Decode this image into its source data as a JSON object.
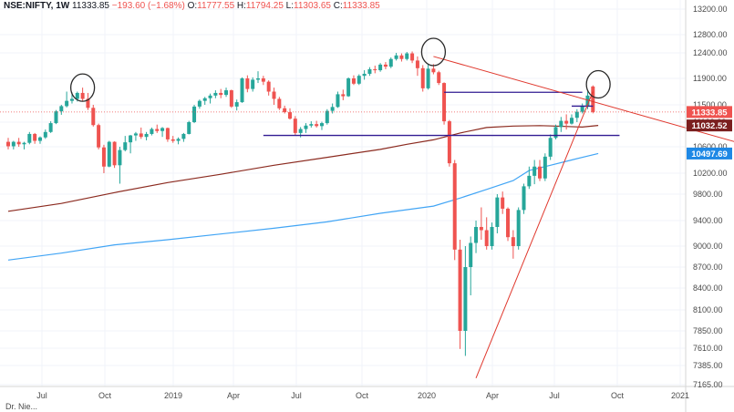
{
  "header": {
    "symbol": "NSE:NIFTY, 1W",
    "last": "11333.85",
    "change": "−193.60 (−1.68%)",
    "o_label": "O:",
    "o_val": "11777.55",
    "h_label": "H:",
    "h_val": "11794.25",
    "l_label": "L:",
    "l_val": "11303.65",
    "c_label": "C:",
    "c_val": "11333.85"
  },
  "colors": {
    "up": "#26a69a",
    "down": "#ef5350",
    "sma_long": "#42a5f5",
    "sma_mid": "#8b2a1f",
    "trendline": "#e0382d",
    "hline": "#311b92",
    "pricebox_last": "#ef5350",
    "pricebox_mid": "#7b1f1f",
    "pricebox_long": "#1e88e5"
  },
  "chart_data": {
    "type": "candlestick",
    "title": "",
    "y_axis": {
      "ticks": [
        "13200.00",
        "12800.00",
        "12400.00",
        "11900.00",
        "11500.00",
        "11100.00",
        "10600.00",
        "10200.00",
        "9800.00",
        "9400.00",
        "9000.00",
        "8700.00",
        "8400.00",
        "8100.00",
        "7850.00",
        "7610.00",
        "7385.00",
        "7165.00"
      ],
      "range": [
        7165,
        13200
      ]
    },
    "x_axis": {
      "ticks": [
        "Jul",
        "Oct",
        "2019",
        "Apr",
        "Jul",
        "Oct",
        "2020",
        "Apr",
        "Jul",
        "Oct",
        "2021"
      ]
    },
    "price_labels": [
      {
        "name": "last",
        "value": "11333.85"
      },
      {
        "name": "sma_mid",
        "value": "11032.52"
      },
      {
        "name": "sma_long",
        "value": "10497.69"
      }
    ],
    "candles": [
      [
        10700,
        10780,
        10560,
        10610
      ],
      [
        10610,
        10720,
        10560,
        10700
      ],
      [
        10700,
        10780,
        10600,
        10650
      ],
      [
        10650,
        10700,
        10560,
        10680
      ],
      [
        10680,
        10900,
        10650,
        10860
      ],
      [
        10860,
        10880,
        10660,
        10720
      ],
      [
        10720,
        10810,
        10660,
        10790
      ],
      [
        10790,
        10950,
        10760,
        10900
      ],
      [
        10900,
        11120,
        10880,
        11080
      ],
      [
        11080,
        11380,
        11060,
        11350
      ],
      [
        11350,
        11500,
        11270,
        11470
      ],
      [
        11470,
        11700,
        11440,
        11560
      ],
      [
        11560,
        11690,
        11520,
        11590
      ],
      [
        11590,
        11700,
        11550,
        11680
      ],
      [
        11680,
        11760,
        11560,
        11590
      ],
      [
        11590,
        11680,
        11380,
        11430
      ],
      [
        11430,
        11500,
        11010,
        11040
      ],
      [
        11040,
        11070,
        10560,
        10590
      ],
      [
        10590,
        10640,
        10200,
        10300
      ],
      [
        10300,
        10720,
        10290,
        10700
      ],
      [
        10700,
        10710,
        10280,
        10320
      ],
      [
        10320,
        10600,
        10000,
        10550
      ],
      [
        10550,
        10820,
        10530,
        10690
      ],
      [
        10690,
        10840,
        10500,
        10830
      ],
      [
        10830,
        10900,
        10720,
        10870
      ],
      [
        10870,
        10990,
        10760,
        10800
      ],
      [
        10800,
        10900,
        10730,
        10860
      ],
      [
        10860,
        10990,
        10830,
        10960
      ],
      [
        10960,
        11050,
        10880,
        10920
      ],
      [
        10920,
        11000,
        10800,
        10980
      ],
      [
        10980,
        10990,
        10700,
        10750
      ],
      [
        10750,
        10820,
        10680,
        10720
      ],
      [
        10720,
        10790,
        10650,
        10760
      ],
      [
        10760,
        10880,
        10700,
        10860
      ],
      [
        10860,
        11130,
        10850,
        11100
      ],
      [
        11100,
        11500,
        11080,
        11460
      ],
      [
        11460,
        11580,
        11410,
        11560
      ],
      [
        11560,
        11620,
        11500,
        11600
      ],
      [
        11600,
        11670,
        11520,
        11640
      ],
      [
        11640,
        11720,
        11600,
        11680
      ],
      [
        11680,
        11740,
        11600,
        11650
      ],
      [
        11650,
        11760,
        11620,
        11720
      ],
      [
        11720,
        11730,
        11430,
        11460
      ],
      [
        11460,
        11580,
        11370,
        11540
      ],
      [
        11540,
        11920,
        11530,
        11900
      ],
      [
        11900,
        11960,
        11690,
        11740
      ],
      [
        11740,
        11920,
        11700,
        11880
      ],
      [
        11880,
        12040,
        11830,
        11900
      ],
      [
        11900,
        11950,
        11800,
        11850
      ],
      [
        11850,
        11870,
        11640,
        11700
      ],
      [
        11700,
        11760,
        11500,
        11590
      ],
      [
        11590,
        11620,
        11380,
        11420
      ],
      [
        11420,
        11480,
        11300,
        11330
      ],
      [
        11330,
        11420,
        11160,
        11180
      ],
      [
        11180,
        11240,
        10840,
        10880
      ],
      [
        10880,
        11000,
        10790,
        10960
      ],
      [
        10960,
        11080,
        10880,
        11030
      ],
      [
        11030,
        11120,
        10990,
        11060
      ],
      [
        11060,
        11130,
        10990,
        11020
      ],
      [
        11020,
        11110,
        10940,
        11080
      ],
      [
        11080,
        11400,
        11050,
        11360
      ],
      [
        11360,
        11520,
        11300,
        11450
      ],
      [
        11450,
        11700,
        11430,
        11660
      ],
      [
        11660,
        11730,
        11570,
        11630
      ],
      [
        11630,
        11920,
        11620,
        11900
      ],
      [
        11900,
        11960,
        11800,
        11820
      ],
      [
        11820,
        11980,
        11800,
        11950
      ],
      [
        11950,
        12060,
        11880,
        11990
      ],
      [
        11990,
        12120,
        11950,
        12080
      ],
      [
        12080,
        12150,
        12000,
        12060
      ],
      [
        12060,
        12200,
        12030,
        12170
      ],
      [
        12170,
        12220,
        12080,
        12130
      ],
      [
        12130,
        12310,
        12100,
        12280
      ],
      [
        12280,
        12400,
        12250,
        12350
      ],
      [
        12350,
        12390,
        12230,
        12280
      ],
      [
        12280,
        12420,
        12250,
        12390
      ],
      [
        12390,
        12430,
        12200,
        12250
      ],
      [
        12250,
        12330,
        11950,
        12100
      ],
      [
        12100,
        12160,
        11700,
        11750
      ],
      [
        11750,
        12170,
        11730,
        12090
      ],
      [
        12090,
        12180,
        11980,
        12020
      ],
      [
        12020,
        12050,
        11800,
        11830
      ],
      [
        11830,
        11840,
        11050,
        11120
      ],
      [
        11120,
        11150,
        10300,
        10350
      ],
      [
        10350,
        10400,
        8800,
        8950
      ],
      [
        8950,
        9100,
        7600,
        7850
      ],
      [
        7850,
        9000,
        7510,
        8700
      ],
      [
        8700,
        9150,
        8300,
        9050
      ],
      [
        9050,
        9400,
        8900,
        9300
      ],
      [
        9300,
        9600,
        9100,
        9250
      ],
      [
        9250,
        9450,
        8950,
        9000
      ],
      [
        9000,
        9370,
        8950,
        9300
      ],
      [
        9300,
        9800,
        9200,
        9750
      ],
      [
        9750,
        9850,
        9500,
        9580
      ],
      [
        9580,
        9600,
        9080,
        9140
      ],
      [
        9140,
        9250,
        8820,
        9000
      ],
      [
        9000,
        9600,
        8950,
        9560
      ],
      [
        9560,
        10000,
        9500,
        9950
      ],
      [
        9950,
        10300,
        9900,
        10150
      ],
      [
        10150,
        10400,
        9990,
        10300
      ],
      [
        10300,
        10400,
        10050,
        10100
      ],
      [
        10100,
        10500,
        10050,
        10450
      ],
      [
        10450,
        10850,
        10400,
        10780
      ],
      [
        10780,
        11050,
        10750,
        11000
      ],
      [
        11000,
        11220,
        10900,
        11130
      ],
      [
        11130,
        11280,
        10950,
        11070
      ],
      [
        11070,
        11280,
        11050,
        11200
      ],
      [
        11200,
        11400,
        11100,
        11340
      ],
      [
        11340,
        11520,
        11300,
        11480
      ],
      [
        11480,
        11700,
        11400,
        11640
      ],
      [
        11777.55,
        11794.25,
        11303.65,
        11333.85
      ]
    ],
    "sma_mid": [
      [
        0,
        9540
      ],
      [
        10,
        9660
      ],
      [
        20,
        9830
      ],
      [
        30,
        10020
      ],
      [
        40,
        10180
      ],
      [
        50,
        10320
      ],
      [
        60,
        10440
      ],
      [
        70,
        10560
      ],
      [
        75,
        10650
      ],
      [
        80,
        10740
      ],
      [
        85,
        10880
      ],
      [
        90,
        10990
      ],
      [
        95,
        11020
      ],
      [
        100,
        11030
      ],
      [
        103,
        11020
      ],
      [
        108,
        11000
      ],
      [
        111,
        11032.52
      ]
    ],
    "sma_long": [
      [
        0,
        8800
      ],
      [
        10,
        8900
      ],
      [
        20,
        9020
      ],
      [
        30,
        9100
      ],
      [
        40,
        9190
      ],
      [
        50,
        9280
      ],
      [
        60,
        9380
      ],
      [
        70,
        9510
      ],
      [
        80,
        9620
      ],
      [
        85,
        9740
      ],
      [
        90,
        9890
      ],
      [
        95,
        10060
      ],
      [
        98,
        10240
      ],
      [
        102,
        10320
      ],
      [
        106,
        10400
      ],
      [
        111,
        10497.69
      ]
    ],
    "annotations": [
      {
        "type": "hline",
        "price": 11690,
        "from": 82,
        "to": 108
      },
      {
        "type": "hline",
        "price": 10830,
        "from": 48,
        "to": 115
      },
      {
        "type": "hline",
        "price": 11470,
        "from": 106,
        "to": 110
      },
      {
        "type": "trendline",
        "p1": [
          80,
          12330
        ],
        "p2": [
          140,
          10600
        ]
      },
      {
        "type": "trendline",
        "p1": [
          88,
          7240
        ],
        "p2": [
          110,
          11700
        ]
      },
      {
        "type": "ellipse",
        "center": [
          14,
          11760
        ]
      },
      {
        "type": "ellipse",
        "center": [
          80,
          12420
        ]
      },
      {
        "type": "ellipse",
        "center": [
          111,
          11810
        ]
      }
    ]
  },
  "footer": {
    "label": "Dr. Nie..."
  }
}
